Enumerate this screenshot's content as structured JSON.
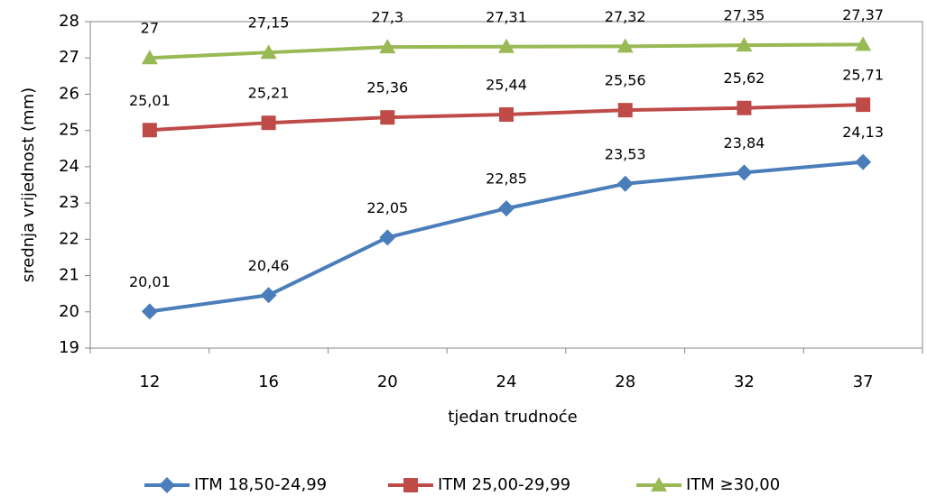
{
  "chart_data": {
    "type": "line",
    "x_label": "tjedan trudnoće",
    "y_label": "srednja vrijednost (mm)",
    "categories": [
      "12",
      "16",
      "20",
      "24",
      "28",
      "32",
      "37"
    ],
    "ylim": [
      19,
      28
    ],
    "yticks": [
      19,
      20,
      21,
      22,
      23,
      24,
      25,
      26,
      27,
      28
    ],
    "grid": false,
    "legend": "bottom",
    "series": [
      {
        "name": "ITM 18,50-24,99",
        "color": "#4a7ebb",
        "marker": "diamond",
        "values": [
          20.01,
          20.46,
          22.05,
          22.85,
          23.53,
          23.84,
          24.13
        ],
        "value_labels": [
          "20,01",
          "20,46",
          "22,05",
          "22,85",
          "23,53",
          "23,84",
          "24,13"
        ]
      },
      {
        "name": "ITM 25,00-29,99",
        "color": "#be4b48",
        "marker": "square",
        "values": [
          25.01,
          25.21,
          25.36,
          25.44,
          25.56,
          25.62,
          25.71
        ],
        "value_labels": [
          "25,01",
          "25,21",
          "25,36",
          "25,44",
          "25,56",
          "25,62",
          "25,71"
        ]
      },
      {
        "name": "ITM ≥30,00",
        "color": "#98b954",
        "marker": "triangle",
        "values": [
          27,
          27.15,
          27.3,
          27.31,
          27.32,
          27.35,
          27.37
        ],
        "value_labels": [
          "27",
          "27,15",
          "27,3",
          "27,31",
          "27,32",
          "27,35",
          "27,37"
        ]
      }
    ]
  }
}
